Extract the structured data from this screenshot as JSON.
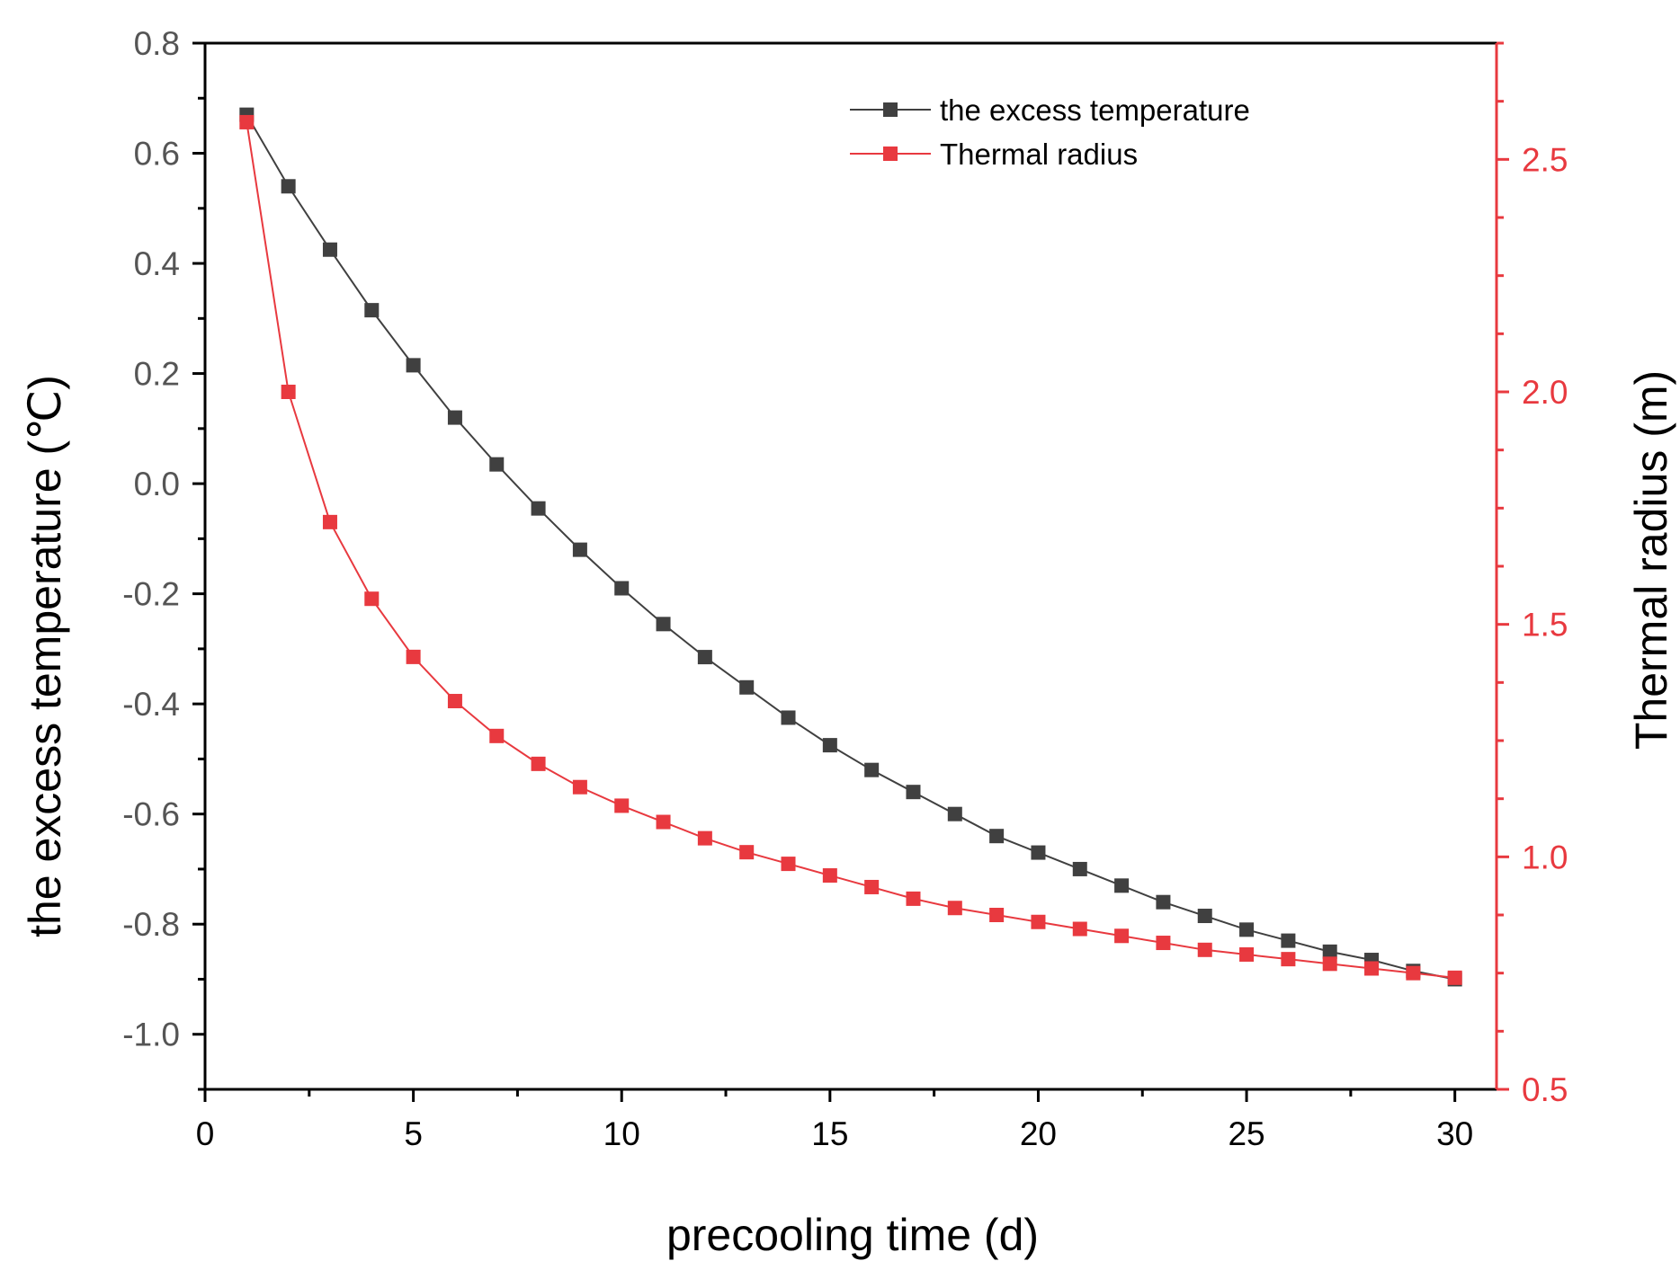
{
  "chart_data": {
    "type": "line",
    "title": "",
    "xlabel": "precooling time (d)",
    "ylabel": "the excess temperature (℃)",
    "y2label": "Thermal radius (m)",
    "xlim": [
      0,
      31
    ],
    "ylim": [
      -1.1,
      0.8
    ],
    "y2lim": [
      0.5,
      2.75
    ],
    "x_ticks": [
      0,
      5,
      10,
      15,
      20,
      25,
      30
    ],
    "x_tick_labels": [
      "0",
      "5",
      "10",
      "15",
      "20",
      "25",
      "30"
    ],
    "y_ticks": [
      0.8,
      0.6,
      0.4,
      0.2,
      0.0,
      -0.2,
      -0.4,
      -0.6,
      -0.8,
      -1.0
    ],
    "y_tick_labels": [
      "0.8",
      "0.6",
      "0.4",
      "0.2",
      "0.0",
      "-0.2",
      "-0.4",
      "-0.6",
      "-0.8",
      "-1.0"
    ],
    "y2_ticks": [
      2.5,
      2.0,
      1.5,
      1.0,
      0.5
    ],
    "y2_tick_labels": [
      "2.5",
      "2.0",
      "1.5",
      "1.0",
      "0.5"
    ],
    "legend_position": "top-right",
    "x": [
      1,
      2,
      3,
      4,
      5,
      6,
      7,
      8,
      9,
      10,
      11,
      12,
      13,
      14,
      15,
      16,
      17,
      18,
      19,
      20,
      21,
      22,
      23,
      24,
      25,
      26,
      27,
      28,
      29,
      30
    ],
    "series": [
      {
        "name": "the excess temperature",
        "axis": "left",
        "color": "#404040",
        "values": [
          0.67,
          0.54,
          0.425,
          0.315,
          0.215,
          0.12,
          0.035,
          -0.045,
          -0.12,
          -0.19,
          -0.255,
          -0.315,
          -0.37,
          -0.425,
          -0.475,
          -0.52,
          -0.56,
          -0.6,
          -0.64,
          -0.67,
          -0.7,
          -0.73,
          -0.76,
          -0.785,
          -0.81,
          -0.83,
          -0.85,
          -0.865,
          -0.885,
          -0.9
        ]
      },
      {
        "name": "Thermal radius",
        "axis": "right",
        "color": "#e8393f",
        "values": [
          2.58,
          2.0,
          1.72,
          1.555,
          1.43,
          1.335,
          1.26,
          1.2,
          1.15,
          1.11,
          1.075,
          1.04,
          1.01,
          0.985,
          0.96,
          0.935,
          0.91,
          0.89,
          0.875,
          0.86,
          0.845,
          0.83,
          0.815,
          0.8,
          0.79,
          0.78,
          0.77,
          0.76,
          0.75,
          0.74
        ]
      }
    ]
  },
  "colors": {
    "left_axis": "#000000",
    "left_tick_label": "#555555",
    "right_axis": "#e8393f",
    "series1": "#404040",
    "series2": "#e8393f"
  }
}
